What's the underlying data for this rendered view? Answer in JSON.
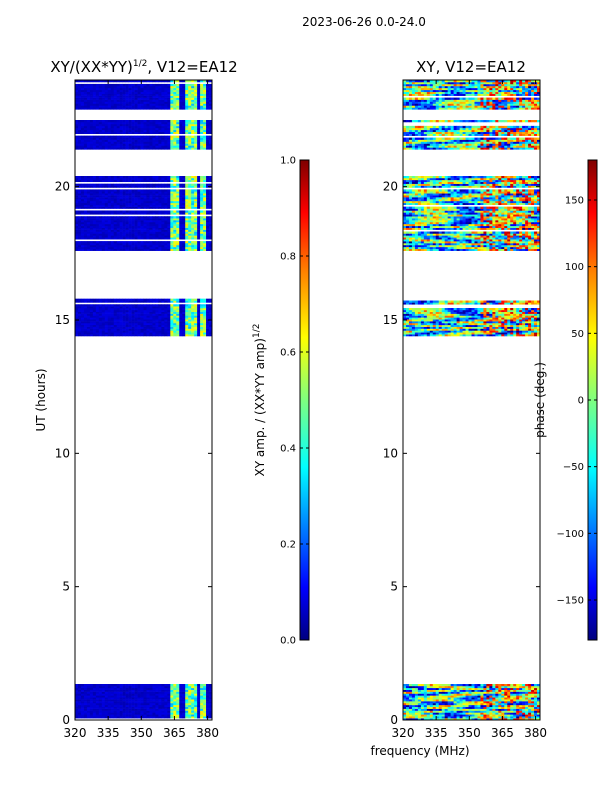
{
  "suptitle": "2023-06-26 0.0-24.0",
  "xlabel_shared": "frequency (MHz)",
  "chart_data": [
    {
      "type": "heatmap",
      "id": "amp",
      "title_main": "XY/(XX*YY)",
      "title_sup": "1/2",
      "title_tail": ", V12=EA12",
      "ylabel": "UT (hours)",
      "xlim": [
        320,
        382
      ],
      "ylim": [
        0,
        24
      ],
      "xticks": [
        320,
        335,
        350,
        365,
        380
      ],
      "yticks": [
        0,
        5,
        10,
        15,
        20
      ],
      "data_blocks_hours": [
        [
          0.0,
          1.35
        ],
        [
          14.4,
          15.8
        ],
        [
          17.6,
          20.4
        ],
        [
          21.4,
          22.5
        ],
        [
          22.9,
          24.0
        ]
      ],
      "bright_channels_mhz": [
        [
          363,
          367
        ],
        [
          370,
          372
        ],
        [
          373,
          375.5
        ],
        [
          377,
          379
        ]
      ],
      "colorbar": {
        "label_main": "XY amp. / (XX*YY amp)",
        "label_sup": "1/2",
        "range": [
          0.0,
          1.0
        ],
        "ticks": [
          "0.0",
          "0.2",
          "0.4",
          "0.6",
          "0.8",
          "1.0"
        ],
        "tick_values": [
          0.0,
          0.2,
          0.4,
          0.6,
          0.8,
          1.0
        ]
      }
    },
    {
      "type": "heatmap",
      "id": "phase",
      "title": "XY, V12=EA12",
      "xlim": [
        320,
        382
      ],
      "ylim": [
        0,
        24
      ],
      "xticks": [
        320,
        335,
        350,
        365,
        380
      ],
      "yticks": [
        0,
        5,
        10,
        15,
        20
      ],
      "data_blocks_hours": [
        [
          0.0,
          1.35
        ],
        [
          14.4,
          15.8
        ],
        [
          17.6,
          20.4
        ],
        [
          21.4,
          22.5
        ],
        [
          22.9,
          24.0
        ]
      ],
      "colorbar": {
        "label": "phase (deg.)",
        "range": [
          -180,
          180
        ],
        "ticks": [
          "−150",
          "−100",
          "−50",
          "0",
          "50",
          "100",
          "150"
        ],
        "tick_values": [
          -150,
          -100,
          -50,
          0,
          50,
          100,
          150
        ]
      }
    }
  ],
  "colors": {
    "jet": [
      "#00007f",
      "#0000ff",
      "#007fff",
      "#00ffff",
      "#7fff7f",
      "#ffff00",
      "#ff7f00",
      "#ff0000",
      "#7f0000"
    ]
  }
}
